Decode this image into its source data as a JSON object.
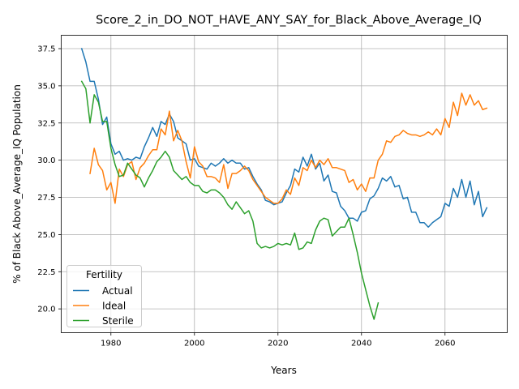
{
  "chart_data": {
    "type": "line",
    "title": "Score_2_in_DO_NOT_HAVE_ANY_SAY_for_Black_Above_Average_IQ",
    "xlabel": "Years",
    "ylabel": "% of Black Above_Average_IQ Population",
    "xlim": [
      1968.1,
      2074.9
    ],
    "ylim": [
      18.4,
      38.4
    ],
    "xticks": [
      1980,
      2000,
      2020,
      2040,
      2060
    ],
    "xtick_labels": [
      "1980",
      "2000",
      "2020",
      "2040",
      "2060"
    ],
    "yticks": [
      20.0,
      22.5,
      25.0,
      27.5,
      30.0,
      32.5,
      35.0,
      37.5
    ],
    "ytick_labels": [
      "20.0",
      "22.5",
      "25.0",
      "27.5",
      "30.0",
      "32.5",
      "35.0",
      "37.5"
    ],
    "grid": true,
    "legend": {
      "title": "Fertility",
      "placement": "lower-left"
    },
    "series": [
      {
        "name": "Actual",
        "color": "#1f77b4",
        "x": [
          1973,
          1974,
          1975,
          1976,
          1977,
          1978,
          1979,
          1980,
          1981,
          1982,
          1983,
          1984,
          1985,
          1986,
          1987,
          1988,
          1989,
          1990,
          1991,
          1992,
          1993,
          1994,
          1995,
          1996,
          1997,
          1998,
          1999,
          2000,
          2001,
          2002,
          2003,
          2004,
          2005,
          2006,
          2007,
          2008,
          2009,
          2010,
          2011,
          2012,
          2013,
          2014,
          2015,
          2016,
          2017,
          2018,
          2019,
          2020,
          2021,
          2022,
          2023,
          2024,
          2025,
          2026,
          2027,
          2028,
          2029,
          2030,
          2031,
          2032,
          2033,
          2034,
          2035,
          2036,
          2037,
          2038,
          2039,
          2040,
          2041,
          2042,
          2043,
          2044,
          2045,
          2046,
          2047,
          2048,
          2049,
          2050,
          2051,
          2052,
          2053,
          2054,
          2055,
          2056,
          2057,
          2058,
          2059,
          2060,
          2061,
          2062,
          2063,
          2064,
          2065,
          2066,
          2067,
          2068,
          2069,
          2070
        ],
        "values": [
          37.5,
          36.6,
          35.3,
          35.3,
          34.1,
          32.4,
          32.9,
          31.1,
          30.4,
          30.6,
          30.0,
          30.1,
          30.0,
          30.2,
          30.1,
          30.9,
          31.5,
          32.2,
          31.6,
          32.6,
          32.4,
          33.1,
          32.6,
          31.5,
          31.3,
          31.1,
          30.0,
          30.1,
          29.6,
          29.5,
          29.4,
          29.8,
          29.6,
          29.8,
          30.1,
          29.8,
          30.0,
          29.8,
          29.8,
          29.4,
          29.5,
          28.9,
          28.4,
          28.0,
          27.3,
          27.2,
          27.0,
          27.1,
          27.2,
          27.8,
          28.3,
          29.4,
          29.2,
          30.2,
          29.6,
          30.4,
          29.4,
          29.8,
          28.6,
          29.0,
          27.9,
          27.8,
          26.9,
          26.6,
          26.1,
          26.1,
          25.9,
          26.5,
          26.6,
          27.4,
          27.6,
          28.1,
          28.8,
          28.6,
          28.9,
          28.2,
          28.3,
          27.4,
          27.5,
          26.5,
          26.5,
          25.8,
          25.8,
          25.5,
          25.8,
          26.0,
          26.2,
          27.1,
          26.9,
          28.1,
          27.5,
          28.7,
          27.5,
          28.6,
          27.0,
          27.9,
          26.2,
          26.8
        ]
      },
      {
        "name": "Ideal",
        "color": "#ff7f0e",
        "x": [
          1975,
          1976,
          1977,
          1978,
          1979,
          1980,
          1981,
          1982,
          1983,
          1984,
          1985,
          1986,
          1987,
          1988,
          1989,
          1990,
          1991,
          1992,
          1993,
          1994,
          1995,
          1996,
          1997,
          1998,
          1999,
          2000,
          2001,
          2002,
          2003,
          2004,
          2005,
          2006,
          2007,
          2008,
          2009,
          2010,
          2011,
          2012,
          2013,
          2014,
          2015,
          2016,
          2017,
          2018,
          2019,
          2020,
          2021,
          2022,
          2023,
          2024,
          2025,
          2026,
          2027,
          2028,
          2029,
          2030,
          2031,
          2032,
          2033,
          2034,
          2035,
          2036,
          2037,
          2038,
          2039,
          2040,
          2041,
          2042,
          2043,
          2044,
          2045,
          2046,
          2047,
          2048,
          2049,
          2050,
          2051,
          2052,
          2053,
          2054,
          2055,
          2056,
          2057,
          2058,
          2059,
          2060,
          2061,
          2062,
          2063,
          2064,
          2065,
          2066,
          2067,
          2068,
          2069,
          2070
        ],
        "values": [
          29.1,
          30.8,
          29.7,
          29.3,
          28.0,
          28.5,
          27.1,
          29.4,
          28.9,
          29.7,
          29.9,
          28.7,
          29.5,
          29.8,
          30.3,
          30.7,
          30.7,
          32.1,
          31.7,
          33.3,
          31.3,
          32.0,
          31.3,
          29.9,
          28.8,
          30.9,
          29.9,
          29.6,
          28.9,
          28.9,
          28.8,
          28.5,
          29.7,
          28.1,
          29.1,
          29.1,
          29.3,
          29.6,
          29.3,
          28.7,
          28.3,
          27.9,
          27.5,
          27.3,
          27.1,
          27.1,
          27.4,
          28.0,
          27.7,
          28.8,
          28.3,
          29.5,
          29.3,
          30.0,
          29.5,
          30.0,
          29.7,
          30.1,
          29.5,
          29.5,
          29.4,
          29.3,
          28.5,
          28.7,
          28.0,
          28.4,
          27.9,
          28.8,
          28.8,
          30.0,
          30.4,
          31.3,
          31.2,
          31.6,
          31.7,
          32.0,
          31.8,
          31.7,
          31.7,
          31.6,
          31.7,
          31.9,
          31.7,
          32.1,
          31.7,
          32.8,
          32.2,
          33.9,
          33.0,
          34.5,
          33.7,
          34.4,
          33.7,
          34.0,
          33.4,
          33.5
        ]
      },
      {
        "name": "Sterile",
        "color": "#2ca02c",
        "x": [
          1973,
          1974,
          1975,
          1976,
          1977,
          1978,
          1979,
          1980,
          1981,
          1982,
          1983,
          1984,
          1985,
          1986,
          1987,
          1988,
          1989,
          1990,
          1991,
          1992,
          1993,
          1994,
          1995,
          1996,
          1997,
          1998,
          1999,
          2000,
          2001,
          2002,
          2003,
          2004,
          2005,
          2006,
          2007,
          2008,
          2009,
          2010,
          2011,
          2012,
          2013,
          2014,
          2015,
          2016,
          2017,
          2018,
          2019,
          2020,
          2021,
          2022,
          2023,
          2024,
          2025,
          2026,
          2027,
          2028,
          2029,
          2030,
          2031,
          2032,
          2033,
          2034,
          2035,
          2036,
          2037,
          2038,
          2039,
          2040,
          2041,
          2042,
          2043,
          2044
        ],
        "values": [
          35.3,
          34.8,
          32.5,
          34.4,
          33.9,
          32.6,
          32.6,
          30.8,
          29.7,
          28.9,
          29.0,
          29.8,
          29.4,
          29.0,
          28.8,
          28.2,
          28.8,
          29.3,
          29.9,
          30.2,
          30.6,
          30.2,
          29.3,
          29.0,
          28.7,
          28.9,
          28.5,
          28.3,
          28.3,
          27.9,
          27.8,
          28.0,
          28.0,
          27.8,
          27.5,
          27.0,
          26.7,
          27.2,
          26.8,
          26.4,
          26.6,
          25.9,
          24.4,
          24.1,
          24.2,
          24.1,
          24.2,
          24.4,
          24.3,
          24.4,
          24.3,
          25.1,
          24.0,
          24.1,
          24.5,
          24.4,
          25.3,
          25.9,
          26.1,
          26.0,
          24.9,
          25.2,
          25.5,
          25.5,
          26.1,
          25.0,
          23.8,
          22.4,
          21.3,
          20.2,
          19.3,
          20.4
        ]
      }
    ]
  }
}
